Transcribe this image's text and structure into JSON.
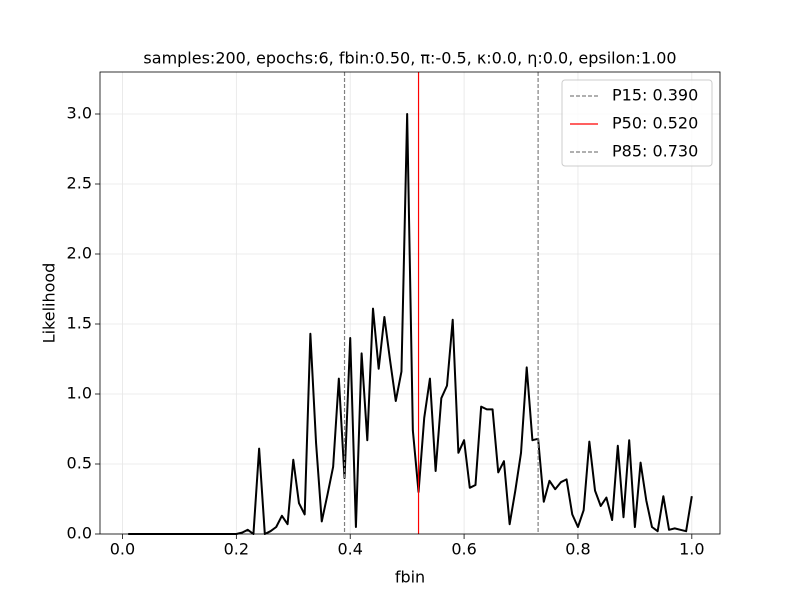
{
  "chart_data": {
    "type": "line",
    "title": "samples:200, epochs:6, fbin:0.50, π:-0.5, κ:0.0, η:0.0, epsilon:1.00",
    "xlabel": "fbin",
    "ylabel": "Likelihood",
    "x": [
      0.01,
      0.02,
      0.03,
      0.04,
      0.05,
      0.06,
      0.07,
      0.08,
      0.09,
      0.1,
      0.11,
      0.12,
      0.13,
      0.14,
      0.15,
      0.16,
      0.17,
      0.18,
      0.19,
      0.2,
      0.21,
      0.22,
      0.23,
      0.24,
      0.25,
      0.26,
      0.27,
      0.28,
      0.29,
      0.3,
      0.31,
      0.32,
      0.33,
      0.34,
      0.35,
      0.36,
      0.37,
      0.38,
      0.39,
      0.4,
      0.41,
      0.42,
      0.43,
      0.44,
      0.45,
      0.46,
      0.47,
      0.48,
      0.49,
      0.5,
      0.51,
      0.52,
      0.53,
      0.54,
      0.55,
      0.56,
      0.57,
      0.58,
      0.59,
      0.6,
      0.61,
      0.62,
      0.63,
      0.64,
      0.65,
      0.66,
      0.67,
      0.68,
      0.69,
      0.7,
      0.71,
      0.72,
      0.73,
      0.74,
      0.75,
      0.76,
      0.77,
      0.78,
      0.79,
      0.8,
      0.81,
      0.82,
      0.83,
      0.84,
      0.85,
      0.86,
      0.87,
      0.88,
      0.89,
      0.9,
      0.91,
      0.92,
      0.93,
      0.94,
      0.95,
      0.96,
      0.97,
      0.98,
      0.99,
      1.0
    ],
    "series": [
      {
        "name": "likelihood",
        "color": "#000000",
        "values": [
          0,
          0,
          0,
          0,
          0,
          0,
          0,
          0,
          0,
          0,
          0,
          0,
          0,
          0,
          0,
          0,
          0,
          0,
          0,
          0,
          0.01,
          0.03,
          0,
          0.61,
          0,
          0.02,
          0.05,
          0.13,
          0.07,
          0.53,
          0.22,
          0.14,
          1.43,
          0.65,
          0.09,
          0.28,
          0.48,
          1.11,
          0.4,
          1.4,
          0.05,
          1.29,
          0.67,
          1.61,
          1.18,
          1.55,
          1.24,
          0.95,
          1.16,
          3.0,
          0.74,
          0.3,
          0.83,
          1.11,
          0.45,
          0.97,
          1.06,
          1.53,
          0.58,
          0.67,
          0.33,
          0.35,
          0.91,
          0.89,
          0.89,
          0.44,
          0.52,
          0.07,
          0.31,
          0.58,
          1.19,
          0.67,
          0.68,
          0.23,
          0.38,
          0.32,
          0.37,
          0.39,
          0.14,
          0.05,
          0.17,
          0.66,
          0.31,
          0.2,
          0.26,
          0.1,
          0.63,
          0.12,
          0.67,
          0.05,
          0.51,
          0.24,
          0.05,
          0.02,
          0.27,
          0.03,
          0.04,
          0.03,
          0.02,
          0.27
        ]
      }
    ],
    "vlines": [
      {
        "name": "P15: 0.390",
        "value": 0.39,
        "color": "#808080",
        "dashed": true
      },
      {
        "name": "P50: 0.520",
        "value": 0.52,
        "color": "#ff0000",
        "dashed": false
      },
      {
        "name": "P85: 0.730",
        "value": 0.73,
        "color": "#808080",
        "dashed": true
      }
    ],
    "xlim": [
      -0.0395,
      1.0495
    ],
    "ylim": [
      0,
      3.3
    ],
    "xticks": [
      {
        "value": 0,
        "label": "0.0"
      },
      0.2,
      0.4,
      0.6,
      0.8,
      {
        "value": 1,
        "label": "1.0"
      }
    ],
    "yticks": [
      {
        "value": 0,
        "label": "0.0"
      },
      0.5,
      {
        "value": 1,
        "label": "1.0"
      },
      1.5,
      {
        "value": 2,
        "label": "2.0"
      },
      2.5,
      {
        "value": 3,
        "label": "3.0"
      }
    ],
    "grid": true,
    "legend": "upper right"
  }
}
